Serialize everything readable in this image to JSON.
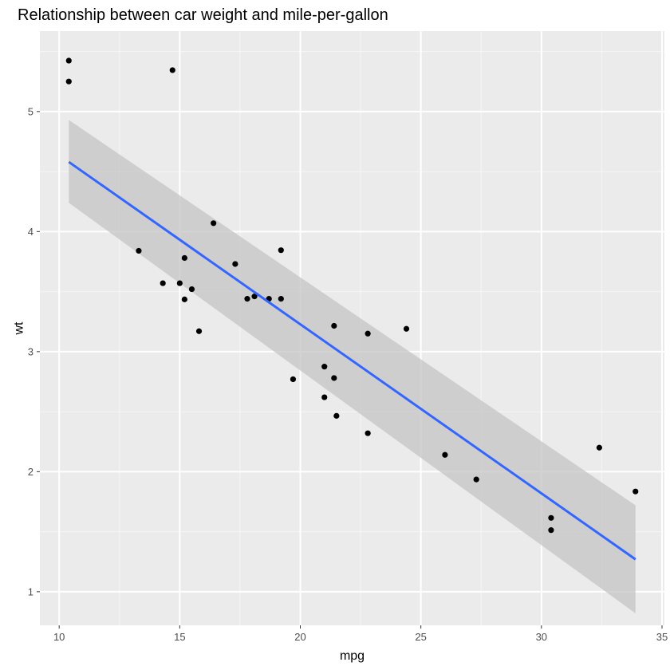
{
  "chart_data": {
    "type": "scatter",
    "title": "Relationship between car weight and mile-per-gallon",
    "xlabel": "mpg",
    "ylabel": "wt",
    "xlim": [
      9.2,
      35.1
    ],
    "ylim": [
      0.72,
      5.67
    ],
    "x_ticks": [
      10,
      15,
      20,
      25,
      30,
      35
    ],
    "y_ticks": [
      1,
      2,
      3,
      4,
      5
    ],
    "x_minor": [
      12.5,
      17.5,
      22.5,
      27.5,
      32.5
    ],
    "y_minor": [
      1.5,
      2.5,
      3.5,
      4.5,
      5.5
    ],
    "grid": true,
    "points": [
      {
        "x": 21.0,
        "y": 2.62
      },
      {
        "x": 21.0,
        "y": 2.875
      },
      {
        "x": 22.8,
        "y": 2.32
      },
      {
        "x": 21.4,
        "y": 3.215
      },
      {
        "x": 18.7,
        "y": 3.44
      },
      {
        "x": 18.1,
        "y": 3.46
      },
      {
        "x": 14.3,
        "y": 3.57
      },
      {
        "x": 24.4,
        "y": 3.19
      },
      {
        "x": 22.8,
        "y": 3.15
      },
      {
        "x": 19.2,
        "y": 3.44
      },
      {
        "x": 17.8,
        "y": 3.44
      },
      {
        "x": 16.4,
        "y": 4.07
      },
      {
        "x": 17.3,
        "y": 3.73
      },
      {
        "x": 15.2,
        "y": 3.78
      },
      {
        "x": 10.4,
        "y": 5.25
      },
      {
        "x": 10.4,
        "y": 5.424
      },
      {
        "x": 14.7,
        "y": 5.345
      },
      {
        "x": 32.4,
        "y": 2.2
      },
      {
        "x": 30.4,
        "y": 1.615
      },
      {
        "x": 33.9,
        "y": 1.835
      },
      {
        "x": 21.5,
        "y": 2.465
      },
      {
        "x": 15.5,
        "y": 3.52
      },
      {
        "x": 15.2,
        "y": 3.435
      },
      {
        "x": 13.3,
        "y": 3.84
      },
      {
        "x": 19.2,
        "y": 3.845
      },
      {
        "x": 27.3,
        "y": 1.935
      },
      {
        "x": 26.0,
        "y": 2.14
      },
      {
        "x": 30.4,
        "y": 1.513
      },
      {
        "x": 15.8,
        "y": 3.17
      },
      {
        "x": 19.7,
        "y": 2.77
      },
      {
        "x": 15.0,
        "y": 3.57
      },
      {
        "x": 21.4,
        "y": 2.78
      }
    ],
    "smooth": {
      "method": "linear",
      "x": [
        10.4,
        33.9
      ],
      "fit": [
        4.58,
        1.27
      ],
      "ci_upper": [
        4.93,
        1.72
      ],
      "ci_lower": [
        4.24,
        0.82
      ]
    },
    "colors": {
      "panel": "#ebebeb",
      "grid_major": "#ffffff",
      "grid_minor": "#f5f5f5",
      "point": "#000000",
      "line": "#3366ff",
      "ribbon": "#c4c4c4"
    }
  }
}
